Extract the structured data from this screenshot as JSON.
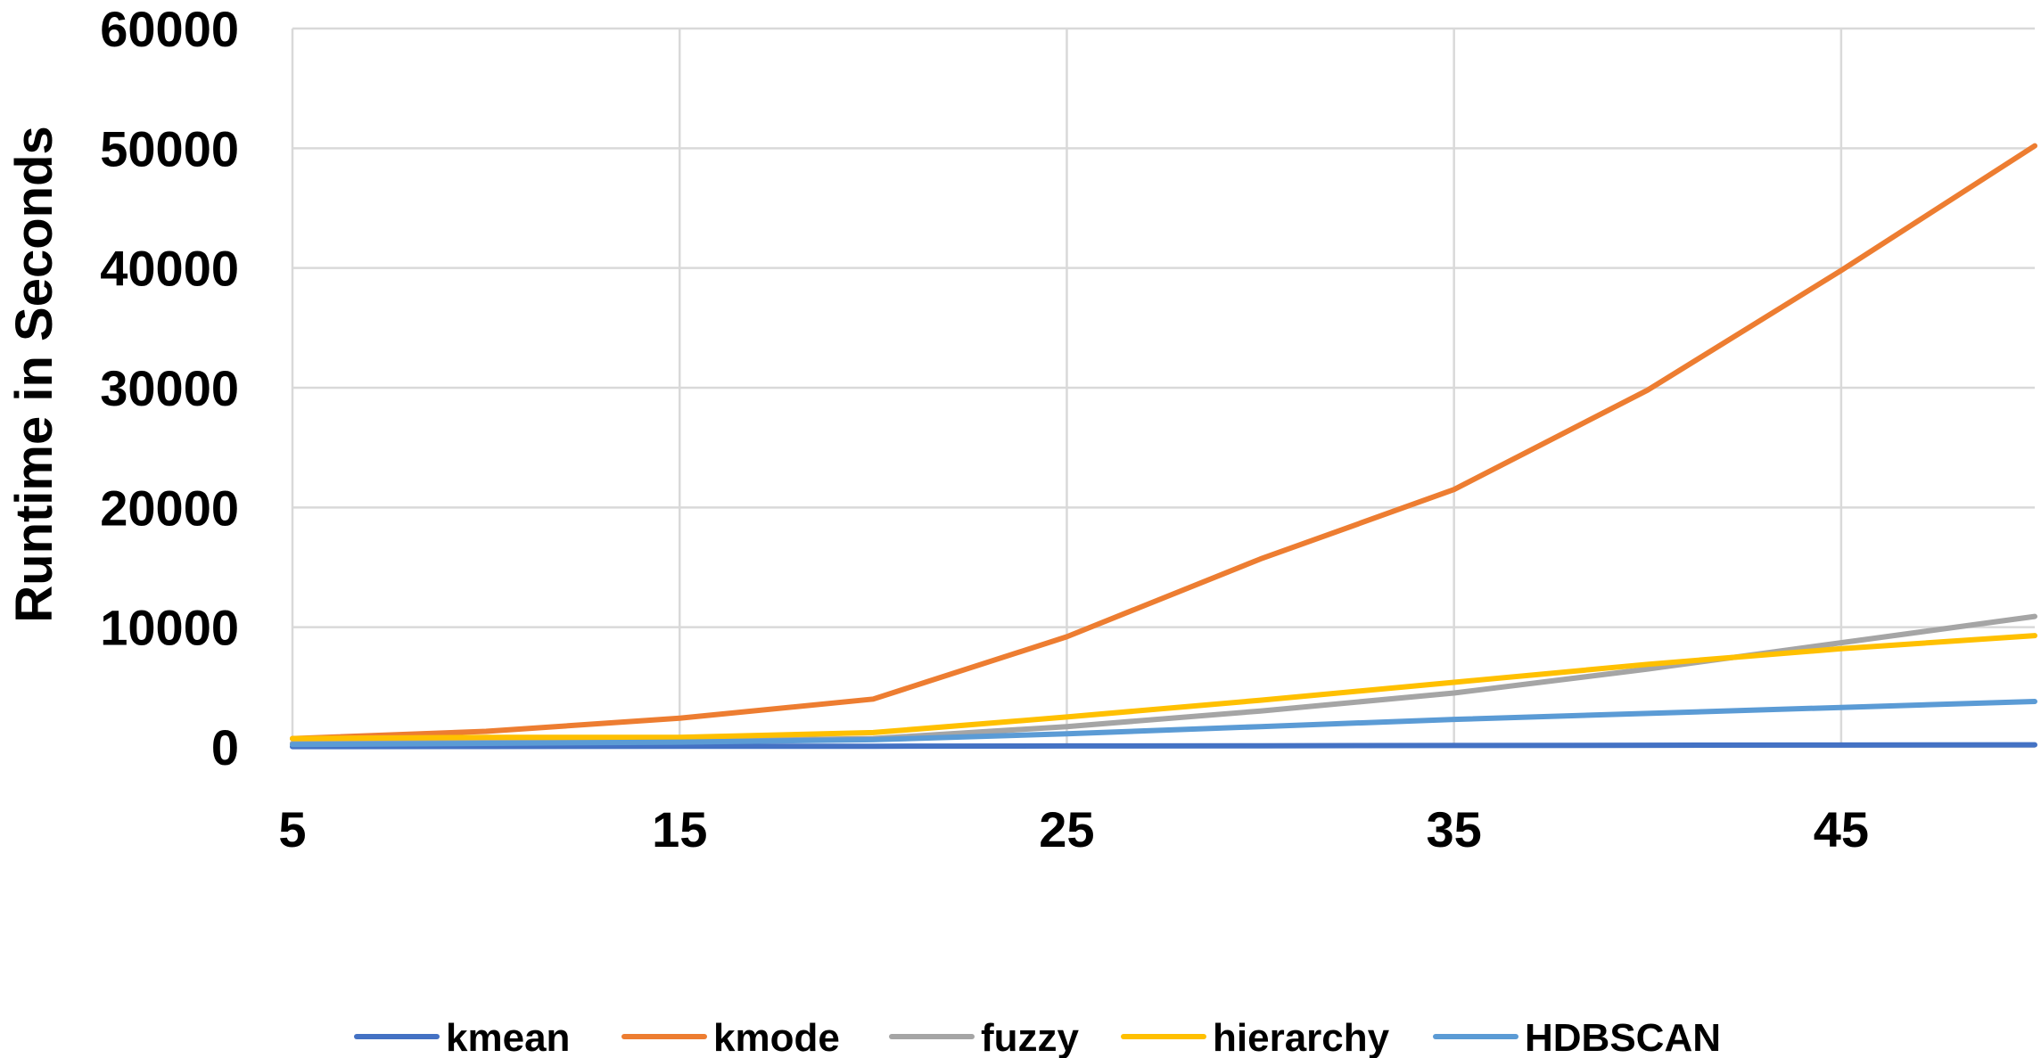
{
  "chart_data": {
    "type": "line",
    "title": "",
    "xlabel": "",
    "ylabel": "Runtime in Seconds",
    "x": [
      5,
      10,
      15,
      20,
      25,
      30,
      35,
      40,
      45,
      50
    ],
    "xticks": [
      "5",
      "15",
      "25",
      "35",
      "45"
    ],
    "xtick_values": [
      5,
      15,
      25,
      35,
      45
    ],
    "xlim": [
      5,
      50
    ],
    "yticks": [
      "0",
      "10000",
      "20000",
      "30000",
      "40000",
      "50000",
      "60000"
    ],
    "ytick_values": [
      0,
      10000,
      20000,
      30000,
      40000,
      50000,
      60000
    ],
    "ylim": [
      0,
      60000
    ],
    "grid": true,
    "legend_position": "bottom",
    "series": [
      {
        "name": "kmean",
        "color": "#4472C4",
        "values": [
          30,
          40,
          50,
          60,
          80,
          100,
          120,
          140,
          160,
          180
        ]
      },
      {
        "name": "kmode",
        "color": "#ED7D31",
        "values": [
          700,
          1300,
          2400,
          4000,
          9200,
          15700,
          21500,
          29800,
          39800,
          50200
        ]
      },
      {
        "name": "fuzzy",
        "color": "#A5A5A5",
        "values": [
          300,
          400,
          500,
          700,
          1700,
          3000,
          4500,
          6500,
          8700,
          10900
        ]
      },
      {
        "name": "hierarchy",
        "color": "#FFC000",
        "values": [
          700,
          800,
          800,
          1200,
          2500,
          3900,
          5400,
          6900,
          8200,
          9300
        ]
      },
      {
        "name": "HDBSCAN",
        "color": "#5B9BD5",
        "values": [
          200,
          300,
          400,
          600,
          1100,
          1700,
          2300,
          2800,
          3300,
          3800
        ]
      }
    ]
  }
}
